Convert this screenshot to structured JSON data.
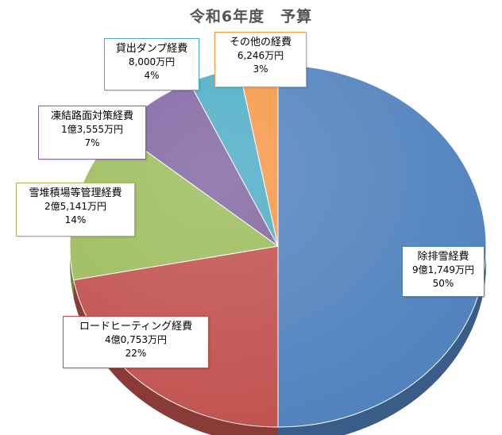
{
  "chart_data": {
    "type": "pie",
    "title": "令和6年度　予算",
    "slices": [
      {
        "name": "除排雪経費",
        "amount": "9億1,749万円",
        "percent": "50%",
        "value": 50,
        "color": "#4f81bd"
      },
      {
        "name": "ロードヒーティング経費",
        "amount": "4億0,753万円",
        "percent": "22%",
        "value": 22,
        "color": "#c0504d"
      },
      {
        "name": "雪堆積場等管理経費",
        "amount": "2億5,141万円",
        "percent": "14%",
        "value": 14,
        "color": "#9bbb59"
      },
      {
        "name": "凍結路面対策経費",
        "amount": "1億3,555万円",
        "percent": "7%",
        "value": 7,
        "color": "#8064a2"
      },
      {
        "name": "貸出ダンプ経費",
        "amount": "8,000万円",
        "percent": "4%",
        "value": 4,
        "color": "#4bacc6"
      },
      {
        "name": "その他の経費",
        "amount": "6,246万円",
        "percent": "3%",
        "value": 3,
        "color": "#f79646"
      }
    ]
  }
}
